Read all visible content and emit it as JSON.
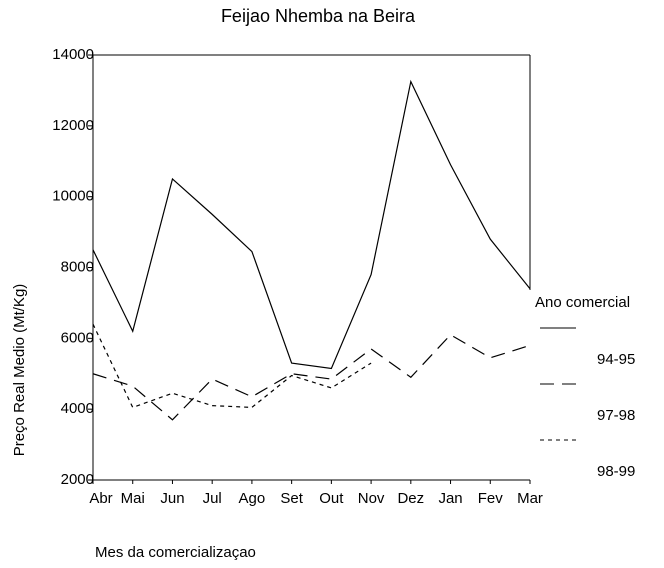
{
  "chart_data": {
    "type": "line",
    "title": "Feijao Nhemba na Beira",
    "x_label": "Mes da comercializaçao",
    "y_label": "Preço Real Medio (Mt/Kg)",
    "categories": [
      "Abr",
      "Mai",
      "Jun",
      "Jul",
      "Ago",
      "Set",
      "Out",
      "Nov",
      "Dez",
      "Jan",
      "Fev",
      "Mar"
    ],
    "series": [
      {
        "name": "94-95",
        "color": "#000000",
        "style": "solid",
        "values": [
          8500,
          6200,
          10500,
          9500,
          8450,
          5300,
          5150,
          7800,
          13250,
          10900,
          8800,
          7400
        ]
      },
      {
        "name": "97-98",
        "color": "#000000",
        "style": "dashed",
        "values": [
          5000,
          4650,
          3700,
          4850,
          4350,
          5000,
          4850,
          5700,
          4900,
          6100,
          5450,
          5800
        ]
      },
      {
        "name": "98-99",
        "color": "#000000",
        "style": "dotted",
        "values": [
          6400,
          4050,
          4450,
          4100,
          4050,
          4950,
          4600,
          5300,
          null,
          null,
          null,
          null
        ]
      }
    ],
    "legend_title": "Ano comercial",
    "legend": "right",
    "ylim": [
      2000,
      14000
    ],
    "yticks": [
      2000,
      4000,
      6000,
      8000,
      10000,
      12000,
      14000
    ],
    "grid": false
  }
}
